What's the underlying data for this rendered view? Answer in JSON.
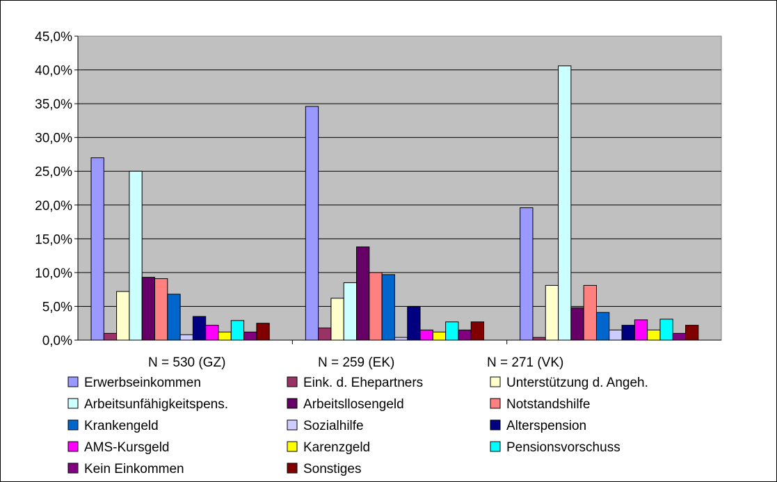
{
  "chart_data": {
    "type": "bar",
    "title": "",
    "xlabel": "",
    "ylabel": "",
    "ylim": [
      0,
      45
    ],
    "y_ticks": [
      "0,0%",
      "5,0%",
      "10,0%",
      "15,0%",
      "20,0%",
      "25,0%",
      "30,0%",
      "35,0%",
      "40,0%",
      "45,0%"
    ],
    "grid": true,
    "legend_position": "bottom",
    "categories": [
      "N = 530 (GZ)",
      "N = 259 (EK)",
      "N = 271 (VK)"
    ],
    "series": [
      {
        "name": "Erwerbseinkommen",
        "color": "#9999ff",
        "values": [
          27.0,
          34.6,
          19.6
        ]
      },
      {
        "name": "Eink. d. Ehepartners",
        "color": "#993366",
        "values": [
          1.0,
          1.8,
          0.4
        ]
      },
      {
        "name": "Unterstützung d. Angeh.",
        "color": "#ffffcc",
        "values": [
          7.2,
          6.2,
          8.1
        ]
      },
      {
        "name": "Arbeitsunfähigkeitspens.",
        "color": "#ccffff",
        "values": [
          25.0,
          8.5,
          40.6
        ]
      },
      {
        "name": "Arbeitsllosengeld",
        "color": "#660066",
        "values": [
          9.3,
          13.8,
          4.8
        ]
      },
      {
        "name": "Notstandshilfe",
        "color": "#ff8080",
        "values": [
          9.1,
          10.0,
          8.1
        ]
      },
      {
        "name": "Krankengeld",
        "color": "#0066cc",
        "values": [
          6.8,
          9.7,
          4.1
        ]
      },
      {
        "name": "Sozialhilfe",
        "color": "#ccccff",
        "values": [
          0.8,
          0.4,
          1.5
        ]
      },
      {
        "name": "Alterspension",
        "color": "#000080",
        "values": [
          3.5,
          5.0,
          2.2
        ]
      },
      {
        "name": "AMS-Kursgeld",
        "color": "#ff00ff",
        "values": [
          2.2,
          1.5,
          3.0
        ]
      },
      {
        "name": "Karenzgeld",
        "color": "#ffff00",
        "values": [
          1.2,
          1.2,
          1.5
        ]
      },
      {
        "name": "Pensionsvorschuss",
        "color": "#00ffff",
        "values": [
          2.9,
          2.7,
          3.1
        ]
      },
      {
        "name": "Kein Einkommen",
        "color": "#800080",
        "values": [
          1.2,
          1.5,
          1.0
        ]
      },
      {
        "name": "Sonstiges",
        "color": "#800000",
        "values": [
          2.5,
          2.7,
          2.2
        ]
      }
    ]
  }
}
